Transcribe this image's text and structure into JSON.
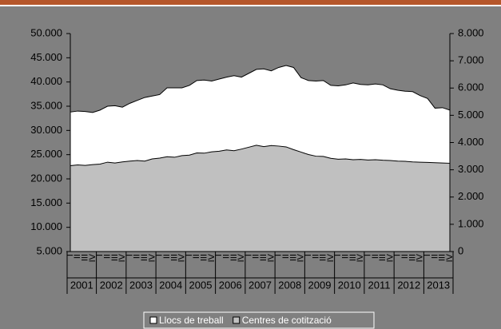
{
  "chart_data": {
    "type": "area",
    "categories": [
      "I",
      "II",
      "III",
      "IV",
      "I",
      "II",
      "III",
      "IV",
      "I",
      "II",
      "III",
      "IV",
      "I",
      "II",
      "III",
      "IV",
      "I",
      "II",
      "III",
      "IV",
      "I",
      "II",
      "III",
      "IV",
      "I",
      "II",
      "III",
      "IV",
      "I",
      "II",
      "III",
      "IV",
      "I",
      "II",
      "III",
      "IV",
      "I",
      "II",
      "III",
      "IV",
      "I",
      "II",
      "III",
      "IV",
      "I",
      "II",
      "III",
      "IV",
      "I",
      "II",
      "III",
      "IV"
    ],
    "years": [
      "2001",
      "2002",
      "2003",
      "2004",
      "2005",
      "2006",
      "2007",
      "2008",
      "2009",
      "2010",
      "2011",
      "2012",
      "2013"
    ],
    "series": [
      {
        "name": "Llocs de treball",
        "color": "#ffffff",
        "values": [
          33800,
          34000,
          33900,
          33700,
          34200,
          35000,
          35100,
          34800,
          35600,
          36200,
          36800,
          37100,
          37400,
          38800,
          38800,
          38800,
          39300,
          40300,
          40400,
          40200,
          40600,
          41000,
          41300,
          41000,
          41800,
          42600,
          42700,
          42300,
          43000,
          43400,
          43000,
          40900,
          40300,
          40200,
          40300,
          39300,
          39200,
          39400,
          39800,
          39500,
          39400,
          39600,
          39400,
          38600,
          38300,
          38100,
          38000,
          37200,
          36600,
          34600,
          34700,
          34200
        ]
      },
      {
        "name": "Centres de cotització",
        "color": "#c0c0c0",
        "axis": "y2",
        "values": [
          3150,
          3180,
          3160,
          3190,
          3210,
          3280,
          3250,
          3290,
          3320,
          3340,
          3320,
          3400,
          3430,
          3480,
          3460,
          3520,
          3540,
          3620,
          3610,
          3660,
          3680,
          3730,
          3700,
          3760,
          3830,
          3900,
          3850,
          3890,
          3870,
          3840,
          3740,
          3650,
          3560,
          3500,
          3490,
          3420,
          3390,
          3400,
          3370,
          3380,
          3360,
          3370,
          3350,
          3340,
          3320,
          3310,
          3290,
          3280,
          3270,
          3260,
          3250,
          3240
        ]
      }
    ],
    "ylim": [
      5000,
      50000
    ],
    "yticks": [
      {
        "value": 5000,
        "label": "5.000"
      },
      {
        "value": 10000,
        "label": "10.000"
      },
      {
        "value": 15000,
        "label": "15.000"
      },
      {
        "value": 20000,
        "label": "20.000"
      },
      {
        "value": 25000,
        "label": "25.000"
      },
      {
        "value": 30000,
        "label": "30.000"
      },
      {
        "value": 35000,
        "label": "35.000"
      },
      {
        "value": 40000,
        "label": "40.000"
      },
      {
        "value": 45000,
        "label": "45.000"
      },
      {
        "value": 50000,
        "label": "50.000"
      }
    ],
    "y2lim": [
      0,
      8000
    ],
    "y2ticks": [
      0,
      {
        "value": 1000,
        "label": "1.000"
      },
      {
        "value": 2000,
        "label": "2.000"
      },
      {
        "value": 3000,
        "label": "3.000"
      },
      {
        "value": 4000,
        "label": "4.000"
      },
      {
        "value": 5000,
        "label": "5.000"
      },
      {
        "value": 6000,
        "label": "6.000"
      },
      {
        "value": 7000,
        "label": "7.000"
      },
      {
        "value": 8000,
        "label": "8.000"
      }
    ],
    "legend": "bottom"
  }
}
